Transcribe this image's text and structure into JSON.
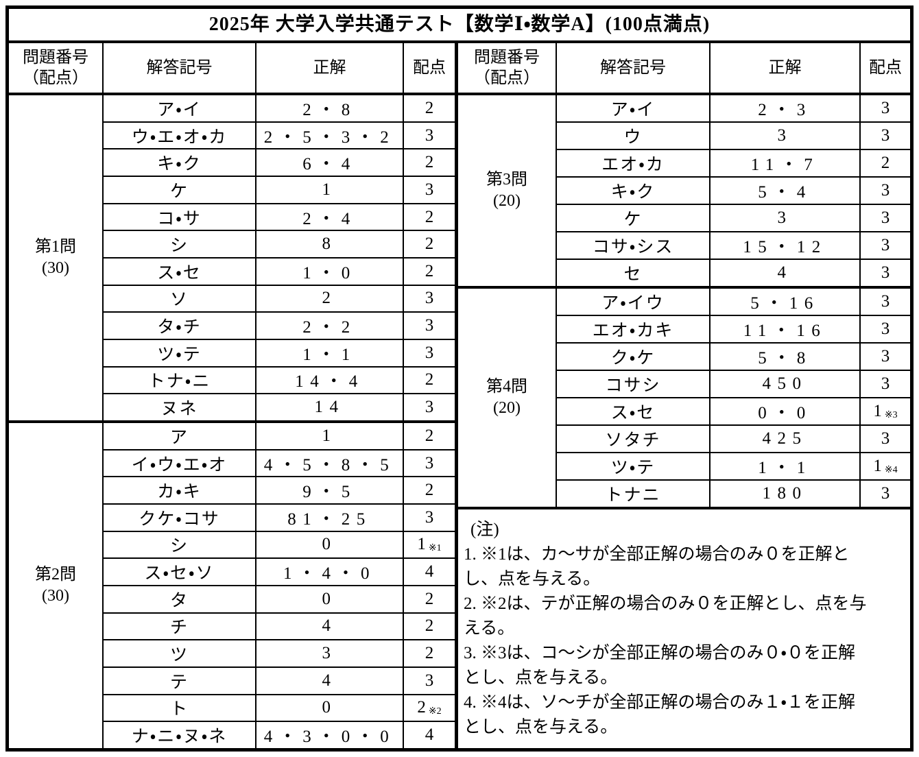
{
  "title": "2025年 大学入学共通テスト【数学Ⅰ・数学A】(100点満点)",
  "column_headers": {
    "question_line1": "問題番号",
    "question_line2": "（配点）",
    "symbol": "解答記号",
    "answer": "正解",
    "points": "配点"
  },
  "left_blocks": [
    {
      "label_line1": "第1問",
      "label_line2": "(30)",
      "rows": [
        {
          "symbol": "ア・イ",
          "answer": "2・8",
          "points": "2"
        },
        {
          "symbol": "ウ・エ・オ・カ",
          "answer": "2・5・3・2",
          "points": "3"
        },
        {
          "symbol": "キ・ク",
          "answer": "6・4",
          "points": "2"
        },
        {
          "symbol": "ケ",
          "answer": "1",
          "points": "3"
        },
        {
          "symbol": "コ・サ",
          "answer": "2・4",
          "points": "2"
        },
        {
          "symbol": "シ",
          "answer": "8",
          "points": "2"
        },
        {
          "symbol": "ス・セ",
          "answer": "1・0",
          "points": "2"
        },
        {
          "symbol": "ソ",
          "answer": "2",
          "points": "3"
        },
        {
          "symbol": "タ・チ",
          "answer": "2・2",
          "points": "3"
        },
        {
          "symbol": "ツ・テ",
          "answer": "1・1",
          "points": "3"
        },
        {
          "symbol": "トナ・ニ",
          "answer": "14・4",
          "points": "2"
        },
        {
          "symbol": "ヌネ",
          "answer": "14",
          "points": "3"
        }
      ]
    },
    {
      "label_line1": "第2問",
      "label_line2": "(30)",
      "rows": [
        {
          "symbol": "ア",
          "answer": "1",
          "points": "2"
        },
        {
          "symbol": "イ・ウ・エ・オ",
          "answer": "4・5・8・5",
          "points": "3"
        },
        {
          "symbol": "カ・キ",
          "answer": "9・5",
          "points": "2"
        },
        {
          "symbol": "クケ・コサ",
          "answer": "81・25",
          "points": "3"
        },
        {
          "symbol": "シ",
          "answer": "0",
          "points": "1",
          "points_note": "※1"
        },
        {
          "symbol": "ス・セ・ソ",
          "answer": "1・4・0",
          "points": "4"
        },
        {
          "symbol": "タ",
          "answer": "0",
          "points": "2"
        },
        {
          "symbol": "チ",
          "answer": "4",
          "points": "2"
        },
        {
          "symbol": "ツ",
          "answer": "3",
          "points": "2"
        },
        {
          "symbol": "テ",
          "answer": "4",
          "points": "3"
        },
        {
          "symbol": "ト",
          "answer": "0",
          "points": "2",
          "points_note": "※2"
        },
        {
          "symbol": "ナ・ニ・ヌ・ネ",
          "answer": "4・3・0・0",
          "points": "4"
        }
      ]
    }
  ],
  "right_blocks": [
    {
      "label_line1": "第3問",
      "label_line2": "(20)",
      "rows": [
        {
          "symbol": "ア・イ",
          "answer": "2・3",
          "points": "3"
        },
        {
          "symbol": "ウ",
          "answer": "3",
          "points": "3"
        },
        {
          "symbol": "エオ・カ",
          "answer": "11・7",
          "points": "2"
        },
        {
          "symbol": "キ・ク",
          "answer": "5・4",
          "points": "3"
        },
        {
          "symbol": "ケ",
          "answer": "3",
          "points": "3"
        },
        {
          "symbol": "コサ・シス",
          "answer": "15・12",
          "points": "3"
        },
        {
          "symbol": "セ",
          "answer": "4",
          "points": "3"
        }
      ]
    },
    {
      "label_line1": "第4問",
      "label_line2": "(20)",
      "rows": [
        {
          "symbol": "ア・イウ",
          "answer": "5・16",
          "points": "3"
        },
        {
          "symbol": "エオ・カキ",
          "answer": "11・16",
          "points": "3"
        },
        {
          "symbol": "ク・ケ",
          "answer": "5・8",
          "points": "3"
        },
        {
          "symbol": "コサシ",
          "answer": "450",
          "points": "3"
        },
        {
          "symbol": "ス・セ",
          "answer": "0・0",
          "points": "1",
          "points_note": "※3"
        },
        {
          "symbol": "ソタチ",
          "answer": "425",
          "points": "3"
        },
        {
          "symbol": "ツ・テ",
          "answer": "1・1",
          "points": "1",
          "points_note": "※4"
        },
        {
          "symbol": "トナニ",
          "answer": "180",
          "points": "3"
        }
      ]
    }
  ],
  "notes": {
    "heading": "(注)",
    "items": [
      "1. ※1は、カ～サが全部正解の場合のみ０を正解と\nし、点を与える。",
      "2. ※2は、テが正解の場合のみ０を正解とし、点を与\nえる。",
      "3. ※3は、コ～シが全部正解の場合のみ０・０を正解\nとし、点を与える。",
      "4. ※4は、ソ～チが全部正解の場合のみ１・１を正解\nとし、点を与える。"
    ]
  }
}
